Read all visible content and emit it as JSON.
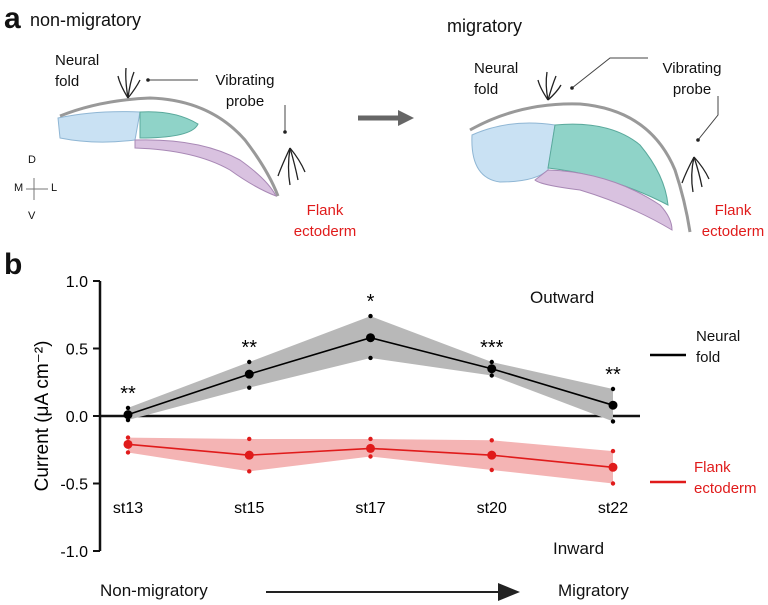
{
  "panel_a": {
    "label": "a",
    "left_title": "non-migratory",
    "right_title": "migratory",
    "left_neural_fold": "Neural fold",
    "left_probe": "Vibrating probe",
    "left_flank": "Flank ectoderm",
    "right_neural_fold": "Neural fold",
    "right_probe": "Vibrating probe",
    "right_flank": "Flank ectoderm",
    "axes": {
      "d": "D",
      "m": "M",
      "l": "L",
      "v": "V"
    }
  },
  "chart_data": {
    "type": "line",
    "panel_label": "b",
    "ylabel": "Current (μA cm⁻²)",
    "categories": [
      "st13",
      "st15",
      "st17",
      "st20",
      "st22"
    ],
    "ylim": [
      -1.0,
      1.0
    ],
    "yticks": [
      {
        "value": 1.0,
        "label": "1.0"
      },
      {
        "value": 0.5,
        "label": "0.5"
      },
      {
        "value": 0.0,
        "label": "0.0"
      },
      {
        "value": -0.5,
        "label": "-0.5"
      },
      {
        "value": -1.0,
        "label": "-1.0"
      }
    ],
    "series": [
      {
        "name": "Neural fold",
        "color": "#000000",
        "band_color": "#b8b8b8",
        "values": [
          0.01,
          0.31,
          0.58,
          0.35,
          0.08
        ],
        "upper": [
          0.06,
          0.4,
          0.74,
          0.4,
          0.2
        ],
        "lower": [
          -0.03,
          0.21,
          0.43,
          0.3,
          -0.04
        ],
        "significance": [
          "**",
          "**",
          "*",
          "***",
          "**"
        ]
      },
      {
        "name": "Flank ectoderm",
        "color": "#e01b1b",
        "band_color": "#f4b4b4",
        "values": [
          -0.21,
          -0.29,
          -0.24,
          -0.29,
          -0.38
        ],
        "upper": [
          -0.16,
          -0.17,
          -0.17,
          -0.18,
          -0.26
        ],
        "lower": [
          -0.27,
          -0.41,
          -0.3,
          -0.4,
          -0.5
        ]
      }
    ],
    "annotations": {
      "outward": "Outward",
      "inward": "Inward"
    },
    "x_start": "Non-migratory",
    "x_end": "Migratory"
  }
}
